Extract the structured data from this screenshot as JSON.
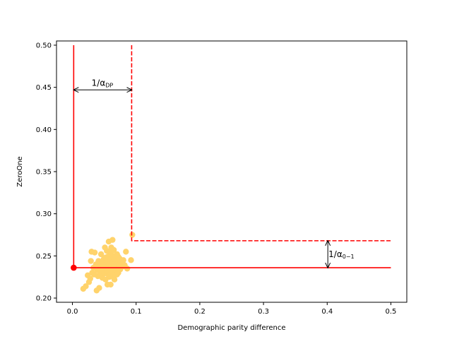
{
  "chart_data": {
    "type": "scatter",
    "title": "",
    "xlabel": "Demographic parity difference",
    "ylabel": "ZeroOne",
    "xlim": [
      -0.025,
      0.525
    ],
    "ylim": [
      0.195,
      0.505
    ],
    "xticks": [
      0.0,
      0.1,
      0.2,
      0.3,
      0.4,
      0.5
    ],
    "xtick_labels": [
      "0.0",
      "0.1",
      "0.2",
      "0.3",
      "0.4",
      "0.5"
    ],
    "yticks": [
      0.2,
      0.25,
      0.3,
      0.35,
      0.4,
      0.45,
      0.5
    ],
    "ytick_labels": [
      "0.20",
      "0.25",
      "0.30",
      "0.35",
      "0.40",
      "0.45",
      "0.50"
    ],
    "grid": false,
    "colors": {
      "points": "#ffd36b",
      "reference": "#ff0000",
      "arrows": "#000000"
    },
    "points": [
      [
        0.017,
        0.211
      ],
      [
        0.021,
        0.214
      ],
      [
        0.024,
        0.227
      ],
      [
        0.026,
        0.219
      ],
      [
        0.028,
        0.223
      ],
      [
        0.029,
        0.244
      ],
      [
        0.03,
        0.255
      ],
      [
        0.031,
        0.23
      ],
      [
        0.033,
        0.236
      ],
      [
        0.034,
        0.228
      ],
      [
        0.035,
        0.254
      ],
      [
        0.037,
        0.24
      ],
      [
        0.038,
        0.209
      ],
      [
        0.039,
        0.233
      ],
      [
        0.04,
        0.226
      ],
      [
        0.041,
        0.244
      ],
      [
        0.042,
        0.212
      ],
      [
        0.043,
        0.237
      ],
      [
        0.044,
        0.23
      ],
      [
        0.045,
        0.252
      ],
      [
        0.046,
        0.241
      ],
      [
        0.047,
        0.224
      ],
      [
        0.048,
        0.235
      ],
      [
        0.049,
        0.246
      ],
      [
        0.05,
        0.229
      ],
      [
        0.051,
        0.26
      ],
      [
        0.051,
        0.238
      ],
      [
        0.052,
        0.222
      ],
      [
        0.053,
        0.243
      ],
      [
        0.054,
        0.232
      ],
      [
        0.055,
        0.216
      ],
      [
        0.055,
        0.249
      ],
      [
        0.056,
        0.236
      ],
      [
        0.057,
        0.227
      ],
      [
        0.058,
        0.255
      ],
      [
        0.058,
        0.241
      ],
      [
        0.059,
        0.231
      ],
      [
        0.06,
        0.216
      ],
      [
        0.06,
        0.246
      ],
      [
        0.061,
        0.238
      ],
      [
        0.062,
        0.226
      ],
      [
        0.062,
        0.251
      ],
      [
        0.063,
        0.234
      ],
      [
        0.064,
        0.243
      ],
      [
        0.064,
        0.229
      ],
      [
        0.065,
        0.257
      ],
      [
        0.066,
        0.237
      ],
      [
        0.066,
        0.222
      ],
      [
        0.067,
        0.247
      ],
      [
        0.068,
        0.233
      ],
      [
        0.068,
        0.241
      ],
      [
        0.069,
        0.228
      ],
      [
        0.07,
        0.252
      ],
      [
        0.07,
        0.236
      ],
      [
        0.071,
        0.244
      ],
      [
        0.072,
        0.23
      ],
      [
        0.073,
        0.239
      ],
      [
        0.074,
        0.247
      ],
      [
        0.075,
        0.234
      ],
      [
        0.076,
        0.242
      ],
      [
        0.078,
        0.237
      ],
      [
        0.08,
        0.245
      ],
      [
        0.082,
        0.239
      ],
      [
        0.084,
        0.255
      ],
      [
        0.086,
        0.235
      ],
      [
        0.057,
        0.267
      ],
      [
        0.063,
        0.269
      ],
      [
        0.092,
        0.245
      ],
      [
        0.094,
        0.275
      ],
      [
        0.045,
        0.233
      ],
      [
        0.052,
        0.248
      ],
      [
        0.058,
        0.225
      ],
      [
        0.061,
        0.26
      ],
      [
        0.067,
        0.228
      ],
      [
        0.072,
        0.249
      ],
      [
        0.048,
        0.239
      ],
      [
        0.054,
        0.256
      ],
      [
        0.06,
        0.233
      ],
      [
        0.065,
        0.24
      ],
      [
        0.07,
        0.228
      ]
    ],
    "highlight_point": [
      0.002,
      0.236
    ],
    "reference_lines": [
      {
        "style": "solid",
        "points": [
          [
            0.002,
            0.5
          ],
          [
            0.002,
            0.236
          ],
          [
            0.5,
            0.236
          ]
        ]
      },
      {
        "style": "dashed",
        "points": [
          [
            0.093,
            0.5
          ],
          [
            0.093,
            0.268
          ],
          [
            0.5,
            0.268
          ]
        ]
      }
    ],
    "annotations": [
      {
        "text": "1/α",
        "subscript": "DP",
        "arrow": "horizontal",
        "from": [
          0.002,
          0.447
        ],
        "to": [
          0.093,
          0.447
        ],
        "label_at": [
          0.047,
          0.452
        ]
      },
      {
        "text": "1/α",
        "subscript": "0−1",
        "arrow": "vertical",
        "from": [
          0.401,
          0.268
        ],
        "to": [
          0.401,
          0.236
        ],
        "label_at": [
          0.401,
          0.252
        ]
      }
    ]
  }
}
